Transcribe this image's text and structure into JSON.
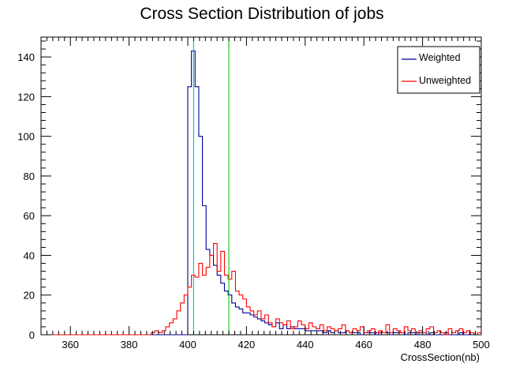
{
  "chart_data": {
    "type": "histogram",
    "title": "Cross Section Distribution of jobs",
    "xlabel": "CrossSection(nb)",
    "ylabel": "",
    "xlim": [
      350,
      500
    ],
    "ylim": [
      0,
      150
    ],
    "xticks": [
      360,
      380,
      400,
      420,
      440,
      460,
      480,
      500
    ],
    "yticks": [
      0,
      20,
      40,
      60,
      80,
      100,
      120,
      140
    ],
    "bin_start": 350,
    "bin_width": 1.25,
    "legend_position": "top-right",
    "grid": false,
    "series": [
      {
        "name": "Weighted",
        "color": "#000099",
        "values": [
          0,
          0,
          0,
          0,
          0,
          0,
          0,
          0,
          0,
          0,
          0,
          0,
          0,
          0,
          0,
          0,
          0,
          0,
          0,
          0,
          0,
          0,
          0,
          0,
          0,
          0,
          0,
          0,
          0,
          0,
          0,
          0,
          0,
          0,
          0,
          0,
          0,
          0,
          0,
          0,
          125,
          143,
          125,
          100,
          65,
          43,
          40,
          35,
          30,
          26,
          22,
          20,
          16,
          14,
          13,
          11,
          11,
          10,
          9,
          8,
          7,
          6,
          5,
          4,
          6,
          3,
          5,
          3,
          4,
          3,
          3,
          3,
          2,
          2,
          2,
          2,
          2,
          1,
          2,
          1,
          2,
          1,
          1,
          2,
          1,
          1,
          1,
          0,
          1,
          1,
          1,
          0,
          1,
          1,
          1,
          0,
          1,
          1,
          1,
          0,
          1,
          1,
          0,
          1,
          1,
          0,
          1,
          0,
          0,
          0,
          1,
          0,
          0,
          0,
          1,
          0,
          0,
          1,
          0,
          0
        ]
      },
      {
        "name": "Unweighted",
        "color": "#ff0000",
        "values": [
          0,
          0,
          0,
          0,
          0,
          0,
          0,
          0,
          0,
          0,
          0,
          0,
          0,
          0,
          0,
          0,
          0,
          0,
          0,
          0,
          0,
          0,
          0,
          0,
          0,
          0,
          0,
          0,
          0,
          0,
          1,
          2,
          1,
          2,
          4,
          6,
          8,
          12,
          16,
          20,
          24,
          30,
          29,
          36,
          30,
          34,
          40,
          46,
          32,
          42,
          30,
          28,
          32,
          22,
          20,
          18,
          14,
          12,
          10,
          12,
          8,
          10,
          6,
          4,
          8,
          6,
          5,
          7,
          3,
          4,
          7,
          5,
          3,
          6,
          4,
          3,
          5,
          2,
          4,
          3,
          2,
          3,
          5,
          2,
          1,
          3,
          2,
          4,
          1,
          2,
          3,
          1,
          2,
          1,
          5,
          1,
          3,
          2,
          1,
          4,
          2,
          3,
          1,
          2,
          1,
          3,
          4,
          1,
          2,
          1,
          0,
          3,
          1,
          2,
          3,
          1,
          2,
          1,
          0,
          1
        ]
      }
    ],
    "vertical_lines": [
      {
        "name": "",
        "x": 402,
        "color": "#00cccc"
      },
      {
        "name": "",
        "x": 414,
        "color": "#22cc22"
      }
    ]
  }
}
